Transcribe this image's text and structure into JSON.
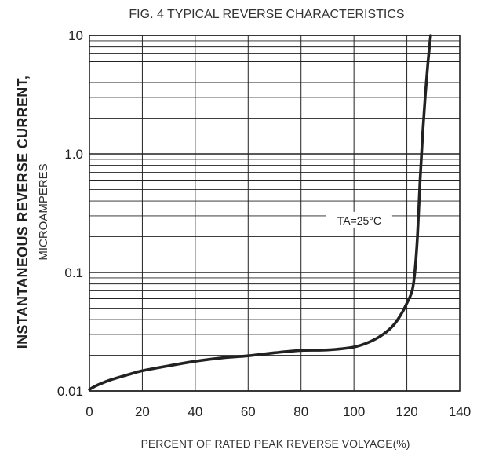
{
  "chart_data": {
    "type": "line",
    "title": "FIG. 4 TYPICAL REVERSE CHARACTERISTICS",
    "xlabel": "PERCENT OF RATED PEAK REVERSE VOLYAGE(%)",
    "ylabel": "INSTANTANEOUS REVERSE CURRENT,",
    "ylabel_unit": "MICROAMPERES",
    "xlim": [
      0,
      140
    ],
    "ylim": [
      0.01,
      10
    ],
    "yscale": "log",
    "grid": true,
    "x_ticks": [
      "0",
      "20",
      "40",
      "60",
      "80",
      "100",
      "120",
      "140"
    ],
    "y_ticks": [
      "0.01",
      "0.1",
      "1.0",
      "10"
    ],
    "annotation": "TA=25°C",
    "annotation_at": {
      "x": 102,
      "y": 0.27
    },
    "series": [
      {
        "x": [
          0,
          3,
          8,
          15,
          20,
          30,
          40,
          50,
          60,
          70,
          80,
          90,
          100,
          106,
          111,
          115,
          118,
          120,
          122,
          123,
          124,
          125,
          126,
          127,
          128,
          129
        ],
        "y": [
          0.0103,
          0.0112,
          0.0124,
          0.0138,
          0.0148,
          0.0163,
          0.0178,
          0.019,
          0.0198,
          0.021,
          0.022,
          0.0222,
          0.0235,
          0.026,
          0.03,
          0.036,
          0.045,
          0.055,
          0.07,
          0.1,
          0.2,
          0.6,
          1.5,
          3.2,
          6.0,
          10.0
        ]
      }
    ]
  }
}
